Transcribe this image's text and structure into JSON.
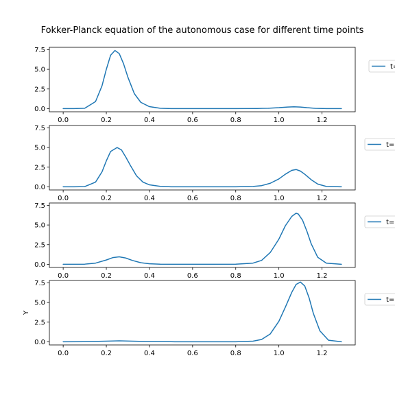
{
  "chart_data": {
    "type": "line",
    "title": "Fokker-Planck equation of the autonomous case for different time points",
    "ylabel": "Y",
    "xlim": [
      -0.064,
      1.354
    ],
    "ylim": [
      -0.4,
      7.8
    ],
    "xticks": [
      "0.0",
      "0.2",
      "0.4",
      "0.6",
      "0.8",
      "1.0",
      "1.2"
    ],
    "yticks": [
      "0.0",
      "2.5",
      "5.0",
      "7.5"
    ],
    "series_color": "#1f77b4",
    "legend_location": "right, outside axes (clipped)",
    "panels": [
      {
        "legend_label": "t=",
        "x": [
          0.0,
          0.05,
          0.1,
          0.15,
          0.18,
          0.2,
          0.22,
          0.24,
          0.26,
          0.28,
          0.3,
          0.33,
          0.36,
          0.4,
          0.45,
          0.5,
          0.6,
          0.7,
          0.8,
          0.9,
          0.95,
          1.0,
          1.04,
          1.07,
          1.1,
          1.13,
          1.17,
          1.22,
          1.29
        ],
        "y": [
          0.0,
          0.0,
          0.05,
          0.9,
          2.9,
          5.0,
          6.8,
          7.4,
          7.0,
          5.7,
          4.0,
          1.9,
          0.8,
          0.25,
          0.05,
          0.0,
          0.0,
          0.0,
          0.0,
          0.02,
          0.05,
          0.12,
          0.2,
          0.23,
          0.2,
          0.12,
          0.04,
          0.0,
          0.0
        ]
      },
      {
        "legend_label": "t=",
        "x": [
          0.0,
          0.05,
          0.1,
          0.15,
          0.18,
          0.2,
          0.22,
          0.25,
          0.27,
          0.29,
          0.31,
          0.34,
          0.37,
          0.4,
          0.45,
          0.5,
          0.6,
          0.7,
          0.8,
          0.88,
          0.92,
          0.96,
          1.0,
          1.03,
          1.06,
          1.08,
          1.1,
          1.12,
          1.15,
          1.18,
          1.22,
          1.29
        ],
        "y": [
          0.0,
          0.0,
          0.03,
          0.6,
          1.9,
          3.3,
          4.5,
          5.0,
          4.7,
          3.8,
          2.8,
          1.4,
          0.6,
          0.25,
          0.06,
          0.0,
          0.0,
          0.0,
          0.0,
          0.05,
          0.15,
          0.45,
          1.0,
          1.6,
          2.1,
          2.2,
          2.0,
          1.6,
          0.9,
          0.35,
          0.05,
          0.0
        ]
      },
      {
        "legend_label": "t=",
        "x": [
          0.0,
          0.1,
          0.15,
          0.2,
          0.23,
          0.26,
          0.29,
          0.32,
          0.36,
          0.4,
          0.45,
          0.5,
          0.6,
          0.7,
          0.8,
          0.88,
          0.92,
          0.96,
          1.0,
          1.03,
          1.06,
          1.08,
          1.09,
          1.11,
          1.13,
          1.15,
          1.18,
          1.22,
          1.29
        ],
        "y": [
          0.0,
          0.02,
          0.15,
          0.55,
          0.85,
          0.95,
          0.8,
          0.5,
          0.2,
          0.07,
          0.02,
          0.0,
          0.0,
          0.0,
          0.02,
          0.15,
          0.5,
          1.5,
          3.2,
          4.9,
          6.1,
          6.5,
          6.4,
          5.6,
          4.2,
          2.6,
          0.9,
          0.15,
          0.0
        ]
      },
      {
        "legend_label": "t=",
        "x": [
          0.0,
          0.1,
          0.2,
          0.26,
          0.32,
          0.4,
          0.5,
          0.6,
          0.7,
          0.8,
          0.88,
          0.92,
          0.96,
          1.0,
          1.03,
          1.06,
          1.08,
          1.1,
          1.12,
          1.14,
          1.16,
          1.19,
          1.23,
          1.29
        ],
        "y": [
          0.0,
          0.02,
          0.08,
          0.12,
          0.08,
          0.03,
          0.01,
          0.0,
          0.0,
          0.0,
          0.08,
          0.3,
          1.0,
          2.6,
          4.4,
          6.3,
          7.3,
          7.6,
          7.1,
          5.6,
          3.6,
          1.4,
          0.2,
          0.0
        ]
      }
    ]
  }
}
